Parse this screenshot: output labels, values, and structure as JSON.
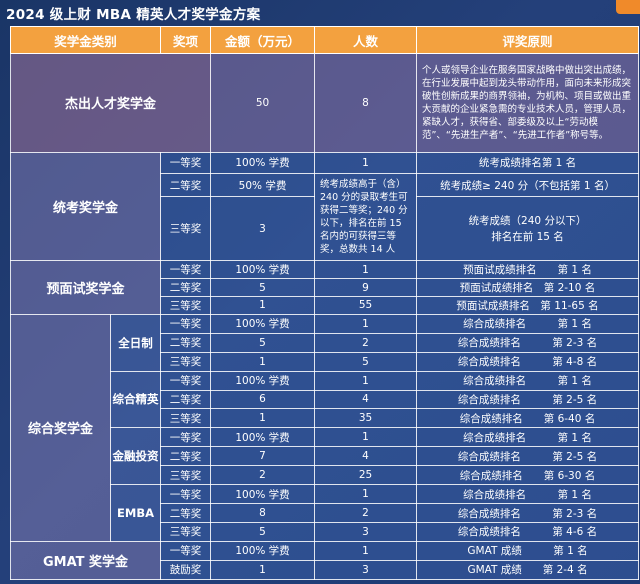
{
  "title": "2024 级上财 MBA 精英人才奖学金方案",
  "headers": {
    "category": "奖学金类别",
    "award": "奖项",
    "amount": "金额（万元）",
    "count": "人数",
    "criteria": "评奖原则"
  },
  "outstanding": {
    "category": "杰出人才奖学金",
    "amount": "50",
    "count": "8",
    "criteria": "个人或领导企业在服务国家战略中做出突出成绩，在行业发展中起到龙头带动作用，面向未来形成突破性创新成果的商界领袖，为机构、项目或做出重大贡献的企业紧急需的专业技术人员，管理人员，紧缺人才，获得省、部委级及以上“劳动模范”、“先进生产者”、“先进工作者”称号等。"
  },
  "exam": {
    "category": "统考奖学金",
    "rows": [
      {
        "grade": "一等奖",
        "amount": "100% 学费",
        "count": "1",
        "criteria": "统考成绩排名第 1 名"
      },
      {
        "grade": "二等奖",
        "amount": "50% 学费",
        "count": "统考成绩高于（含）240 分的录取考生可获得二等奖；240 分以下，排名在前 15 名内的可获得三等奖，总数共 14 人",
        "criteria": "统考成绩≥ 240 分（不包括第 1 名）"
      },
      {
        "grade": "三等奖",
        "amount": "3",
        "criteria_line1": "统考成绩（240 分以下）",
        "criteria_line2": "排名在前 15 名"
      }
    ]
  },
  "preinterview": {
    "category": "预面试奖学金",
    "rows": [
      {
        "grade": "一等奖",
        "amount": "100% 学费",
        "count": "1",
        "criteria": "预面试成绩排名　　第 1 名"
      },
      {
        "grade": "二等奖",
        "amount": "5",
        "count": "9",
        "criteria": "预面试成绩排名　第 2-10 名"
      },
      {
        "grade": "三等奖",
        "amount": "1",
        "count": "55",
        "criteria": "预面试成绩排名　第 11-65 名"
      }
    ]
  },
  "comprehensive": {
    "category": "综合奖学金",
    "groups": [
      {
        "name": "全日制",
        "rows": [
          {
            "grade": "一等奖",
            "amount": "100% 学费",
            "count": "1",
            "criteria": "综合成绩排名　　　第 1 名"
          },
          {
            "grade": "二等奖",
            "amount": "5",
            "count": "2",
            "criteria": "综合成绩排名　　　第 2-3 名"
          },
          {
            "grade": "三等奖",
            "amount": "1",
            "count": "5",
            "criteria": "综合成绩排名　　　第 4-8 名"
          }
        ]
      },
      {
        "name": "综合精英",
        "rows": [
          {
            "grade": "一等奖",
            "amount": "100% 学费",
            "count": "1",
            "criteria": "综合成绩排名　　　第 1 名"
          },
          {
            "grade": "二等奖",
            "amount": "6",
            "count": "4",
            "criteria": "综合成绩排名　　　第 2-5 名"
          },
          {
            "grade": "三等奖",
            "amount": "1",
            "count": "35",
            "criteria": "综合成绩排名　　第 6-40 名"
          }
        ]
      },
      {
        "name": "金融投资",
        "rows": [
          {
            "grade": "一等奖",
            "amount": "100% 学费",
            "count": "1",
            "criteria": "综合成绩排名　　　第 1 名"
          },
          {
            "grade": "二等奖",
            "amount": "7",
            "count": "4",
            "criteria": "综合成绩排名　　　第 2-5 名"
          },
          {
            "grade": "三等奖",
            "amount": "2",
            "count": "25",
            "criteria": "综合成绩排名　　第 6-30 名"
          }
        ]
      },
      {
        "name": "EMBA",
        "rows": [
          {
            "grade": "一等奖",
            "amount": "100% 学费",
            "count": "1",
            "criteria": "综合成绩排名　　　第 1 名"
          },
          {
            "grade": "二等奖",
            "amount": "8",
            "count": "2",
            "criteria": "综合成绩排名　　　第 2-3 名"
          },
          {
            "grade": "三等奖",
            "amount": "5",
            "count": "3",
            "criteria": "综合成绩排名　　　第 4-6 名"
          }
        ]
      }
    ]
  },
  "gmat": {
    "category": "GMAT 奖学金",
    "rows": [
      {
        "grade": "一等奖",
        "amount": "100% 学费",
        "count": "1",
        "criteria": "GMAT 成绩　　　第 1 名"
      },
      {
        "grade": "鼓励奖",
        "amount": "1",
        "count": "3",
        "criteria": "GMAT 成绩　　第 2-4 名"
      }
    ]
  }
}
